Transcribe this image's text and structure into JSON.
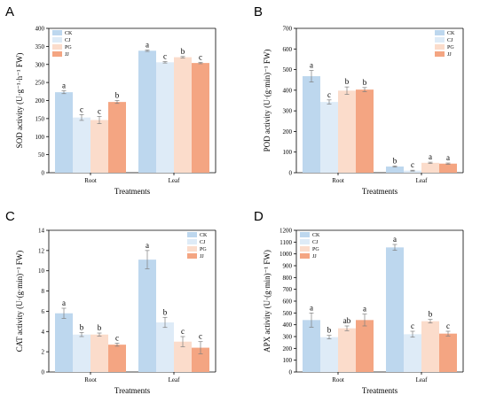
{
  "colors": {
    "CK": "#bdd7ee",
    "CJ": "#deebf7",
    "PG": "#fbdccb",
    "JJ": "#f4a582",
    "err": "#7f7f7f",
    "axis": "#000000"
  },
  "legend": [
    "CK",
    "CJ",
    "PG",
    "JJ"
  ],
  "chart_data": [
    {
      "type": "bar",
      "panel": "A",
      "ylabel": "SOD activity (U·g⁻¹·h⁻¹ FW)",
      "xlabel": "Treatments",
      "categories": [
        "Root",
        "Leaf"
      ],
      "ylim": [
        0,
        400
      ],
      "yticks": [
        "0",
        "50",
        "100",
        "150",
        "200",
        "250",
        "300",
        "350",
        "400"
      ],
      "legend_position": "top-left",
      "series": [
        {
          "name": "CK",
          "values": [
            223,
            338
          ],
          "errors": [
            4,
            2
          ],
          "letters": [
            "a",
            "a"
          ]
        },
        {
          "name": "CJ",
          "values": [
            153,
            306
          ],
          "errors": [
            8,
            2
          ],
          "letters": [
            "c",
            "c"
          ]
        },
        {
          "name": "PG",
          "values": [
            146,
            320
          ],
          "errors": [
            10,
            2
          ],
          "letters": [
            "c",
            "b"
          ]
        },
        {
          "name": "JJ",
          "values": [
            196,
            304
          ],
          "errors": [
            4,
            2
          ],
          "letters": [
            "b",
            "c"
          ]
        }
      ]
    },
    {
      "type": "bar",
      "panel": "B",
      "ylabel": "POD activity (U·(g·min)⁻¹ FW)",
      "xlabel": "Treatments",
      "categories": [
        "Root",
        "Leaf"
      ],
      "ylim": [
        0,
        700
      ],
      "yticks": [
        "0",
        "100",
        "200",
        "300",
        "400",
        "500",
        "600",
        "700"
      ],
      "legend_position": "top-right",
      "series": [
        {
          "name": "CK",
          "values": [
            468,
            30
          ],
          "errors": [
            28,
            3
          ],
          "letters": [
            "a",
            "b"
          ]
        },
        {
          "name": "CJ",
          "values": [
            343,
            10
          ],
          "errors": [
            10,
            2
          ],
          "letters": [
            "c",
            "c"
          ]
        },
        {
          "name": "PG",
          "values": [
            398,
            48
          ],
          "errors": [
            18,
            3
          ],
          "letters": [
            "b",
            "a"
          ]
        },
        {
          "name": "JJ",
          "values": [
            403,
            44
          ],
          "errors": [
            10,
            3
          ],
          "letters": [
            "b",
            "a"
          ]
        }
      ]
    },
    {
      "type": "bar",
      "panel": "C",
      "ylabel": "CAT activity (U·(g·min)⁻¹ FW)",
      "xlabel": "Treatments",
      "categories": [
        "Root",
        "Leaf"
      ],
      "ylim": [
        0,
        14
      ],
      "yticks": [
        "0",
        "2",
        "4",
        "6",
        "8",
        "10",
        "12",
        "14"
      ],
      "legend_position": "top-right",
      "series": [
        {
          "name": "CK",
          "values": [
            5.8,
            11.1
          ],
          "errors": [
            0.5,
            0.9
          ],
          "letters": [
            "a",
            "a"
          ]
        },
        {
          "name": "CJ",
          "values": [
            3.7,
            4.9
          ],
          "errors": [
            0.2,
            0.5
          ],
          "letters": [
            "b",
            "b"
          ]
        },
        {
          "name": "PG",
          "values": [
            3.7,
            3.0
          ],
          "errors": [
            0.15,
            0.5
          ],
          "letters": [
            "b",
            "c"
          ]
        },
        {
          "name": "JJ",
          "values": [
            2.7,
            2.4
          ],
          "errors": [
            0.15,
            0.6
          ],
          "letters": [
            "c",
            "c"
          ]
        }
      ]
    },
    {
      "type": "bar",
      "panel": "D",
      "ylabel": "APX activity (U·(g·min)⁻¹ FW)",
      "xlabel": "Treatments",
      "categories": [
        "Root",
        "Leaf"
      ],
      "ylim": [
        0,
        1200
      ],
      "yticks": [
        "0",
        "100",
        "200",
        "300",
        "400",
        "500",
        "600",
        "700",
        "800",
        "900",
        "1000",
        "1100",
        "1200"
      ],
      "legend_position": "top-left",
      "series": [
        {
          "name": "CK",
          "values": [
            440,
            1055
          ],
          "errors": [
            60,
            25
          ],
          "letters": [
            "a",
            "a"
          ]
        },
        {
          "name": "CJ",
          "values": [
            295,
            320
          ],
          "errors": [
            15,
            25
          ],
          "letters": [
            "b",
            "c"
          ]
        },
        {
          "name": "PG",
          "values": [
            370,
            430
          ],
          "errors": [
            20,
            15
          ],
          "letters": [
            "ab",
            "b"
          ]
        },
        {
          "name": "JJ",
          "values": [
            440,
            325
          ],
          "errors": [
            50,
            20
          ],
          "letters": [
            "a",
            "c"
          ]
        }
      ]
    }
  ]
}
